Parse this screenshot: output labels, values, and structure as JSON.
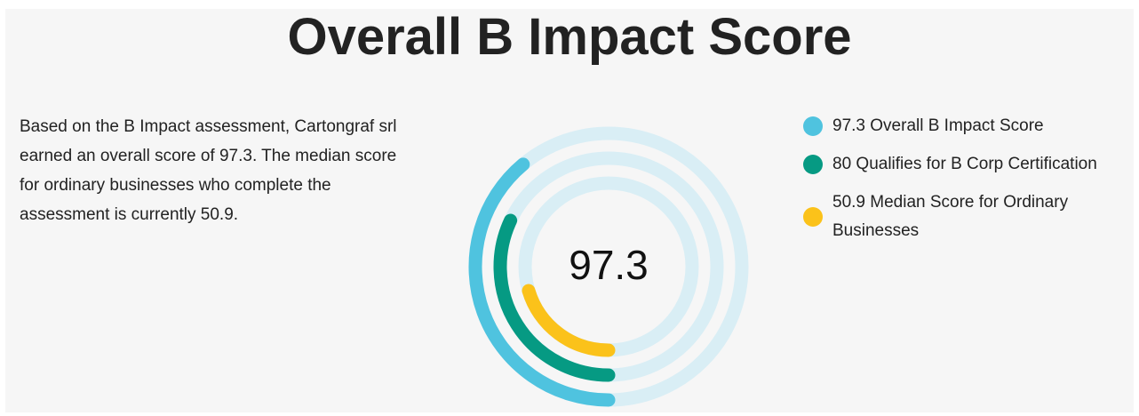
{
  "chart_data": {
    "type": "radial",
    "title": "Overall B Impact Score",
    "description": "Based on the B Impact assessment, Cartongraf srl earned an overall score of 97.3. The median score for ordinary businesses who complete the assessment is currently 50.9.",
    "center_label": "97.3",
    "rlim": [
      0,
      250
    ],
    "track_color": "#d9eef5",
    "series": [
      {
        "name": "Overall B Impact Score",
        "color": "#4fc3df",
        "value": 97.3
      },
      {
        "name": "Qualifies for B Corp Certification",
        "color": "#069a83",
        "value": 80
      },
      {
        "name": "Median Score for Ordinary Businesses",
        "color": "#fbc21a",
        "value": 50.9
      }
    ]
  }
}
